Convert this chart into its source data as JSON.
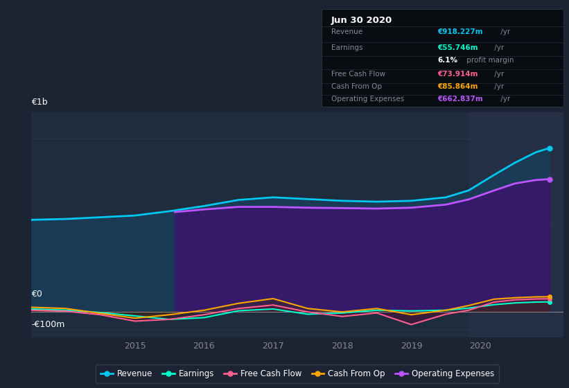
{
  "bg_color": "#1c2333",
  "plot_bg_color": "#1e2d3d",
  "chart_top_bg": "#1c2333",
  "highlight_bg_color": "#252f45",
  "ylim": [
    -150000000,
    1150000000
  ],
  "xlim": [
    2013.5,
    2021.2
  ],
  "x_ticks": [
    2015,
    2016,
    2017,
    2018,
    2019,
    2020
  ],
  "highlight_x_start": 2019.83,
  "highlight_x_end": 2021.2,
  "ylabel_top": "€1b",
  "ylabel_zero": "€0",
  "ylabel_neg": "-€100m",
  "info_box_bg": "#090c10",
  "info_box_border": "#2a3040",
  "revenue": {
    "x": [
      2013.5,
      2014.0,
      2014.5,
      2015.0,
      2015.5,
      2016.0,
      2016.5,
      2017.0,
      2017.5,
      2018.0,
      2018.5,
      2019.0,
      2019.5,
      2019.83,
      2020.2,
      2020.5,
      2020.8,
      2021.0
    ],
    "y": [
      530000000,
      535000000,
      545000000,
      555000000,
      580000000,
      610000000,
      645000000,
      660000000,
      650000000,
      640000000,
      635000000,
      640000000,
      660000000,
      700000000,
      790000000,
      860000000,
      920000000,
      945000000
    ],
    "color": "#00c8f0",
    "fill_color": "#1a3a55",
    "linewidth": 2.0
  },
  "operating_expenses": {
    "x": [
      2015.58,
      2016.0,
      2016.5,
      2017.0,
      2017.5,
      2018.0,
      2018.5,
      2019.0,
      2019.5,
      2019.83,
      2020.2,
      2020.5,
      2020.8,
      2021.0
    ],
    "y": [
      575000000,
      590000000,
      605000000,
      605000000,
      600000000,
      598000000,
      595000000,
      600000000,
      618000000,
      648000000,
      700000000,
      740000000,
      760000000,
      765000000
    ],
    "color": "#bb55ff",
    "fill_color": "#351a6a",
    "linewidth": 2.0
  },
  "earnings": {
    "x": [
      2013.5,
      2014.0,
      2014.5,
      2015.0,
      2015.5,
      2016.0,
      2016.5,
      2017.0,
      2017.5,
      2018.0,
      2018.5,
      2019.0,
      2019.5,
      2019.83,
      2020.2,
      2020.5,
      2020.8,
      2021.0
    ],
    "y": [
      15000000,
      8000000,
      -5000000,
      -25000000,
      -45000000,
      -35000000,
      5000000,
      15000000,
      -15000000,
      -8000000,
      8000000,
      4000000,
      8000000,
      20000000,
      40000000,
      50000000,
      55000000,
      56000000
    ],
    "color": "#00ffcc",
    "linewidth": 1.5
  },
  "free_cash_flow": {
    "x": [
      2013.5,
      2014.0,
      2014.5,
      2015.0,
      2015.5,
      2016.0,
      2016.5,
      2017.0,
      2017.5,
      2018.0,
      2018.5,
      2019.0,
      2019.5,
      2019.83,
      2020.2,
      2020.5,
      2020.8,
      2021.0
    ],
    "y": [
      8000000,
      2000000,
      -18000000,
      -55000000,
      -45000000,
      -18000000,
      18000000,
      38000000,
      -2000000,
      -28000000,
      -8000000,
      -75000000,
      -15000000,
      8000000,
      55000000,
      68000000,
      73000000,
      74000000
    ],
    "color": "#ff6090",
    "linewidth": 1.5
  },
  "cash_from_op": {
    "x": [
      2013.5,
      2014.0,
      2014.5,
      2015.0,
      2015.5,
      2016.0,
      2016.5,
      2017.0,
      2017.5,
      2018.0,
      2018.5,
      2019.0,
      2019.5,
      2019.83,
      2020.2,
      2020.5,
      2020.8,
      2021.0
    ],
    "y": [
      25000000,
      18000000,
      -10000000,
      -38000000,
      -18000000,
      8000000,
      48000000,
      75000000,
      18000000,
      -2000000,
      18000000,
      -18000000,
      8000000,
      35000000,
      72000000,
      80000000,
      85000000,
      86000000
    ],
    "color": "#ffa500",
    "linewidth": 1.5
  },
  "legend_items": [
    {
      "label": "Revenue",
      "color": "#00c8f0"
    },
    {
      "label": "Earnings",
      "color": "#00ffcc"
    },
    {
      "label": "Free Cash Flow",
      "color": "#ff6090"
    },
    {
      "label": "Cash From Op",
      "color": "#ffa500"
    },
    {
      "label": "Operating Expenses",
      "color": "#bb55ff"
    }
  ]
}
